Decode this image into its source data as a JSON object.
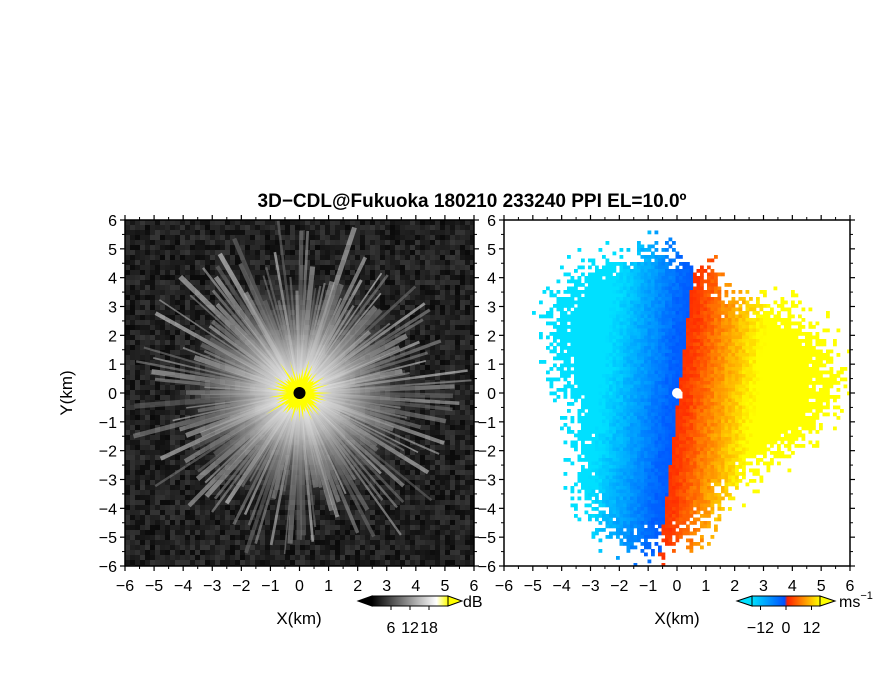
{
  "chart_data": [
    {
      "type": "heatmap",
      "title": "3D−CDL@Fukuoka 180210 233240 PPI EL=10.0º",
      "panel": "reflectivity",
      "xlabel": "X(km)",
      "ylabel": "Y(km)",
      "xlim": [
        -6,
        6
      ],
      "ylim": [
        -6,
        6
      ],
      "xticks": [
        "−6",
        "−5",
        "−4",
        "−3",
        "−2",
        "−1",
        "0",
        "1",
        "2",
        "3",
        "4",
        "5",
        "6"
      ],
      "yticks": [
        "6",
        "5",
        "4",
        "3",
        "2",
        "1",
        "0",
        "−1",
        "−2",
        "−3",
        "−4",
        "−5",
        "−6"
      ],
      "colorbar": {
        "unit": "dB",
        "ticks": [
          "6",
          "12",
          "18"
        ],
        "range": [
          0,
          24
        ],
        "colors": [
          "#000000",
          "#ffffff",
          "#ffff00"
        ]
      },
      "saturation_color": "#ffff00",
      "center_marker_color": "#000000"
    },
    {
      "type": "heatmap",
      "panel": "doppler_velocity",
      "xlabel": "X(km)",
      "xlim": [
        -6,
        6
      ],
      "ylim": [
        -6,
        6
      ],
      "xticks": [
        "−6",
        "−5",
        "−4",
        "−3",
        "−2",
        "−1",
        "0",
        "1",
        "2",
        "3",
        "4",
        "5",
        "6"
      ],
      "yticks": [
        "6",
        "5",
        "4",
        "3",
        "2",
        "1",
        "0",
        "−1",
        "−2",
        "−3",
        "−4",
        "−5",
        "−6"
      ],
      "colorbar": {
        "unit": "ms",
        "unit_exponent": "−1",
        "ticks": [
          "−12",
          "0",
          "12"
        ],
        "range": [
          -16,
          16
        ],
        "colors": [
          "#00e0ff",
          "#0050ff",
          "#ff2000",
          "#ffff00"
        ]
      },
      "center_marker_color": "#ffffff"
    }
  ]
}
